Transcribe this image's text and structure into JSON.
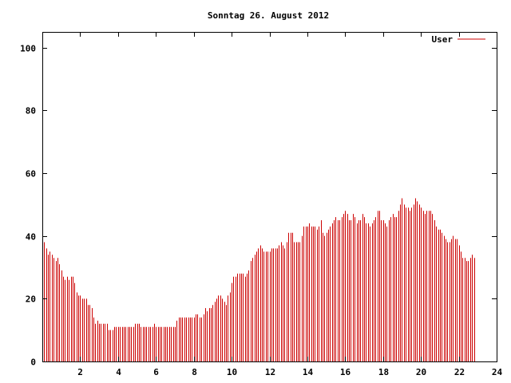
{
  "chart_data": {
    "type": "bar",
    "title": "Sonntag 26. August 2012",
    "xlabel": "",
    "ylabel": "",
    "xlim": [
      0,
      24
    ],
    "ylim": [
      0,
      105
    ],
    "x_ticks": [
      2,
      4,
      6,
      8,
      10,
      12,
      14,
      16,
      18,
      20,
      22,
      24
    ],
    "y_ticks": [
      0,
      20,
      40,
      60,
      80,
      100
    ],
    "grid": false,
    "legend_position": "top-right",
    "bar_color": "#cc0000",
    "series": [
      {
        "name": "User",
        "interval_hours": 0.1,
        "values": [
          39,
          38,
          36,
          34,
          35,
          34,
          33,
          32,
          33,
          31,
          29,
          27,
          26,
          27,
          26,
          27,
          27,
          25,
          22,
          21,
          21,
          20,
          20,
          20,
          18,
          18,
          17,
          14,
          12,
          13,
          12,
          12,
          12,
          12,
          12,
          10,
          10,
          10,
          11,
          11,
          11,
          11,
          11,
          11,
          11,
          11,
          11,
          11,
          11,
          12,
          12,
          12,
          11,
          11,
          11,
          11,
          11,
          11,
          11,
          12,
          11,
          11,
          11,
          11,
          11,
          11,
          11,
          11,
          11,
          11,
          11,
          13,
          14,
          14,
          14,
          14,
          14,
          14,
          14,
          14,
          14,
          15,
          15,
          14,
          14,
          15,
          17,
          16,
          17,
          17,
          18,
          19,
          20,
          21,
          21,
          20,
          19,
          18,
          21,
          22,
          25,
          27,
          27,
          28,
          28,
          28,
          28,
          27,
          28,
          29,
          32,
          33,
          34,
          35,
          36,
          37,
          36,
          35,
          35,
          35,
          35,
          36,
          36,
          36,
          36,
          37,
          38,
          37,
          36,
          38,
          41,
          41,
          41,
          38,
          38,
          38,
          38,
          40,
          43,
          43,
          43,
          44,
          43,
          43,
          43,
          42,
          43,
          45,
          41,
          40,
          41,
          42,
          43,
          44,
          45,
          46,
          45,
          45,
          46,
          47,
          48,
          47,
          45,
          45,
          47,
          46,
          44,
          45,
          45,
          47,
          46,
          44,
          44,
          43,
          44,
          45,
          46,
          48,
          48,
          45,
          45,
          44,
          43,
          45,
          46,
          47,
          46,
          46,
          48,
          50,
          52,
          50,
          49,
          49,
          48,
          49,
          50,
          52,
          51,
          50,
          49,
          48,
          47,
          48,
          48,
          48,
          47,
          45,
          43,
          42,
          42,
          41,
          40,
          39,
          38,
          38,
          39,
          40,
          39,
          39,
          37,
          35,
          33,
          33,
          32,
          32,
          33,
          34,
          33
        ]
      }
    ]
  }
}
